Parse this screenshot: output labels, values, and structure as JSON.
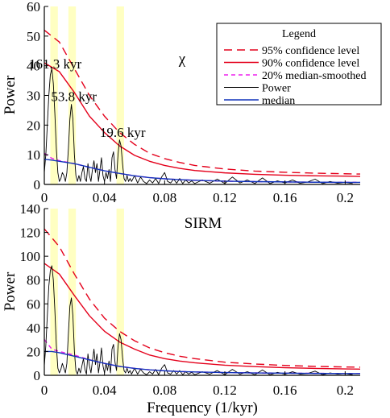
{
  "chart_data": [
    {
      "type": "line",
      "panel_label": "χ",
      "ylabel": "Power",
      "xlabel": "",
      "xlim": [
        0,
        0.21
      ],
      "ylim": [
        0,
        60
      ],
      "xticks": [
        0,
        0.04,
        0.08,
        0.12,
        0.16,
        0.2
      ],
      "xtick_labels": [
        "0",
        "0.04",
        "0.08",
        "0.12",
        "0.16",
        "0.2"
      ],
      "yticks": [
        0,
        10,
        20,
        30,
        40,
        50,
        60
      ],
      "ytick_labels": [
        "0",
        "10",
        "20",
        "30",
        "40",
        "50",
        "60"
      ],
      "bands": [
        [
          0.004,
          0.009
        ],
        [
          0.016,
          0.021
        ],
        [
          0.048,
          0.053
        ]
      ],
      "peak_labels": [
        {
          "text": "161.3 kyr",
          "x": 0.0062,
          "y": 38
        },
        {
          "text": "53.8 kyr",
          "x": 0.0186,
          "y": 27
        },
        {
          "text": "19.6 kyr",
          "x": 0.051,
          "y": 15
        }
      ],
      "legend": {
        "title": "Legend",
        "entries": [
          "95% confidence level",
          "90% confidence level",
          "20% median-smoothed",
          "Power",
          "median"
        ],
        "colors": [
          "#e4001b",
          "#e4001b",
          "#ee22ee",
          "#000000",
          "#1133bb"
        ],
        "dash": [
          "10,6",
          "",
          "5,4",
          "",
          ""
        ],
        "widths": [
          1.4,
          1.4,
          1.5,
          0.9,
          1.4
        ]
      },
      "series": [
        {
          "id": "conf95",
          "color": "#e4001b",
          "dash": "10,6",
          "width": 1.4,
          "x": [
            0,
            0.01,
            0.02,
            0.03,
            0.04,
            0.05,
            0.06,
            0.07,
            0.08,
            0.09,
            0.1,
            0.12,
            0.14,
            0.16,
            0.18,
            0.2,
            0.21
          ],
          "y": [
            52,
            48,
            39,
            30,
            23,
            17.5,
            13.5,
            10.5,
            8.7,
            7.4,
            6.4,
            5.2,
            4.5,
            4.1,
            3.8,
            3.6,
            3.5
          ]
        },
        {
          "id": "conf90",
          "color": "#e4001b",
          "dash": "",
          "width": 1.4,
          "x": [
            0,
            0.01,
            0.02,
            0.03,
            0.04,
            0.05,
            0.06,
            0.07,
            0.08,
            0.09,
            0.1,
            0.12,
            0.14,
            0.16,
            0.18,
            0.2,
            0.21
          ],
          "y": [
            41,
            38,
            31,
            23,
            17.5,
            13,
            9.8,
            7.8,
            6.4,
            5.4,
            4.7,
            3.9,
            3.4,
            3.1,
            2.9,
            2.8,
            2.7
          ]
        },
        {
          "id": "smoothed",
          "color": "#ee22ee",
          "dash": "5,4",
          "width": 1.5,
          "x": [
            0,
            0.005,
            0.01,
            0.02,
            0.03,
            0.04,
            0.05,
            0.06,
            0.07,
            0.08,
            0.09,
            0.1,
            0.12,
            0.14,
            0.16,
            0.18,
            0.2,
            0.21
          ],
          "y": [
            10.5,
            8.8,
            8,
            7,
            5.8,
            4.6,
            3.7,
            2.9,
            2.3,
            1.9,
            1.6,
            1.4,
            1.1,
            0.95,
            0.85,
            0.75,
            0.7,
            0.7
          ]
        },
        {
          "id": "power",
          "color": "#000000",
          "dash": "",
          "width": 0.9,
          "x": [
            0,
            0.001,
            0.002,
            0.003,
            0.004,
            0.005,
            0.006,
            0.007,
            0.008,
            0.009,
            0.01,
            0.011,
            0.012,
            0.013,
            0.014,
            0.015,
            0.016,
            0.017,
            0.018,
            0.019,
            0.02,
            0.021,
            0.022,
            0.023,
            0.024,
            0.025,
            0.026,
            0.027,
            0.028,
            0.029,
            0.03,
            0.031,
            0.032,
            0.033,
            0.034,
            0.035,
            0.036,
            0.037,
            0.038,
            0.039,
            0.04,
            0.041,
            0.042,
            0.043,
            0.044,
            0.045,
            0.046,
            0.047,
            0.048,
            0.049,
            0.05,
            0.051,
            0.052,
            0.053,
            0.054,
            0.055,
            0.056,
            0.057,
            0.058,
            0.06,
            0.062,
            0.064,
            0.066,
            0.068,
            0.07,
            0.072,
            0.074,
            0.076,
            0.078,
            0.08,
            0.082,
            0.084,
            0.086,
            0.088,
            0.09,
            0.092,
            0.094,
            0.096,
            0.098,
            0.1,
            0.105,
            0.11,
            0.115,
            0.12,
            0.125,
            0.13,
            0.135,
            0.14,
            0.145,
            0.15,
            0.155,
            0.16,
            0.165,
            0.17,
            0.175,
            0.18,
            0.185,
            0.19,
            0.195,
            0.2,
            0.205
          ],
          "y": [
            4,
            10,
            20,
            30,
            37,
            39,
            34,
            24,
            12,
            4,
            1,
            2,
            4,
            3,
            1,
            4,
            12,
            22,
            27,
            22,
            10,
            3,
            1,
            3,
            1,
            4,
            6,
            2,
            1,
            7,
            3,
            1,
            5,
            8,
            4,
            7,
            1,
            5,
            9,
            3,
            1,
            4,
            2,
            5,
            1,
            9,
            11,
            5,
            2,
            10,
            15,
            13,
            7,
            2,
            1,
            3,
            1,
            2,
            1,
            3,
            0.5,
            2.5,
            1,
            0.3,
            1.5,
            0.5,
            2,
            0.3,
            2.5,
            4,
            1,
            0.5,
            1.8,
            0.4,
            2,
            0.3,
            1.5,
            0.5,
            1.2,
            0.3,
            1.5,
            0.4,
            1.8,
            0.3,
            2.5,
            0.5,
            1.5,
            0.3,
            2.2,
            0.3,
            1.2,
            0.5,
            1.5,
            0.4,
            0.8,
            1.8,
            0.3,
            1,
            0.4,
            0.7,
            0.3
          ]
        },
        {
          "id": "median",
          "color": "#1133bb",
          "dash": "",
          "width": 1.4,
          "x": [
            0,
            0.005,
            0.01,
            0.02,
            0.03,
            0.04,
            0.05,
            0.06,
            0.07,
            0.08,
            0.09,
            0.1,
            0.12,
            0.14,
            0.16,
            0.18,
            0.2,
            0.21
          ],
          "y": [
            8.5,
            8.2,
            7.8,
            7,
            5.8,
            4.6,
            3.7,
            2.9,
            2.3,
            1.9,
            1.6,
            1.4,
            1.1,
            0.95,
            0.85,
            0.75,
            0.7,
            0.7
          ]
        }
      ]
    },
    {
      "type": "line",
      "panel_label": "SIRM",
      "ylabel": "Power",
      "xlabel": "Frequency (1/kyr)",
      "xlim": [
        0,
        0.21
      ],
      "ylim": [
        0,
        140
      ],
      "xticks": [
        0,
        0.04,
        0.08,
        0.12,
        0.16,
        0.2
      ],
      "xtick_labels": [
        "0",
        "0.04",
        "0.08",
        "0.12",
        "0.16",
        "0.2"
      ],
      "yticks": [
        0,
        20,
        40,
        60,
        80,
        100,
        120,
        140
      ],
      "ytick_labels": [
        "0",
        "20",
        "40",
        "60",
        "80",
        "100",
        "120",
        "140"
      ],
      "bands": [
        [
          0.004,
          0.009
        ],
        [
          0.016,
          0.021
        ],
        [
          0.048,
          0.053
        ]
      ],
      "series": [
        {
          "id": "conf95",
          "color": "#e4001b",
          "dash": "10,6",
          "width": 1.4,
          "x": [
            0,
            0.01,
            0.02,
            0.03,
            0.04,
            0.05,
            0.06,
            0.07,
            0.08,
            0.09,
            0.1,
            0.12,
            0.14,
            0.16,
            0.18,
            0.2,
            0.21
          ],
          "y": [
            123,
            108,
            85,
            64,
            48,
            37,
            29,
            23,
            19,
            16,
            14,
            11,
            9.5,
            8.3,
            7.5,
            7,
            6.8
          ]
        },
        {
          "id": "conf90",
          "color": "#e4001b",
          "dash": "",
          "width": 1.4,
          "x": [
            0,
            0.01,
            0.02,
            0.03,
            0.04,
            0.05,
            0.06,
            0.07,
            0.08,
            0.09,
            0.1,
            0.12,
            0.14,
            0.16,
            0.18,
            0.2,
            0.21
          ],
          "y": [
            94,
            85,
            67,
            50,
            37,
            28,
            22,
            17,
            14,
            12,
            10.5,
            8.5,
            7.3,
            6.4,
            5.8,
            5.4,
            5.2
          ]
        },
        {
          "id": "smoothed",
          "color": "#ee22ee",
          "dash": "5,4",
          "width": 1.5,
          "x": [
            0,
            0.005,
            0.01,
            0.02,
            0.03,
            0.04,
            0.05,
            0.06,
            0.07,
            0.08,
            0.09,
            0.1,
            0.12,
            0.14,
            0.16,
            0.18,
            0.2,
            0.21
          ],
          "y": [
            30,
            22,
            20,
            17,
            13,
            10,
            7.5,
            5.8,
            4.6,
            3.8,
            3.2,
            2.8,
            2.3,
            2,
            1.8,
            1.6,
            1.5,
            1.5
          ]
        },
        {
          "id": "power",
          "color": "#000000",
          "dash": "",
          "width": 0.9,
          "x": [
            0,
            0.001,
            0.002,
            0.003,
            0.004,
            0.005,
            0.006,
            0.007,
            0.008,
            0.009,
            0.01,
            0.011,
            0.012,
            0.013,
            0.014,
            0.015,
            0.016,
            0.017,
            0.018,
            0.019,
            0.02,
            0.021,
            0.022,
            0.023,
            0.024,
            0.025,
            0.026,
            0.027,
            0.028,
            0.029,
            0.03,
            0.031,
            0.032,
            0.033,
            0.034,
            0.035,
            0.036,
            0.037,
            0.038,
            0.039,
            0.04,
            0.041,
            0.042,
            0.043,
            0.044,
            0.045,
            0.046,
            0.047,
            0.048,
            0.049,
            0.05,
            0.051,
            0.052,
            0.053,
            0.054,
            0.055,
            0.056,
            0.057,
            0.058,
            0.06,
            0.062,
            0.064,
            0.066,
            0.068,
            0.07,
            0.072,
            0.074,
            0.076,
            0.078,
            0.08,
            0.082,
            0.084,
            0.086,
            0.088,
            0.09,
            0.092,
            0.094,
            0.096,
            0.098,
            0.1,
            0.105,
            0.11,
            0.115,
            0.12,
            0.125,
            0.13,
            0.135,
            0.14,
            0.145,
            0.15,
            0.155,
            0.16,
            0.165,
            0.17,
            0.175,
            0.18,
            0.185,
            0.19,
            0.195,
            0.2,
            0.205
          ],
          "y": [
            8,
            25,
            50,
            75,
            88,
            92,
            80,
            55,
            25,
            6,
            2,
            5,
            10,
            6,
            2,
            10,
            35,
            58,
            65,
            50,
            20,
            4,
            1,
            6,
            2,
            8,
            14,
            5,
            1,
            18,
            8,
            2,
            12,
            22,
            9,
            18,
            2,
            11,
            23,
            8,
            2,
            10,
            4,
            12,
            2,
            22,
            26,
            11,
            4,
            24,
            35,
            30,
            15,
            4,
            2,
            6,
            2,
            4,
            1,
            6,
            1,
            5,
            2,
            0.5,
            3,
            1,
            5,
            0.5,
            6,
            9,
            2,
            1,
            4,
            1,
            4,
            0.5,
            3,
            1,
            2.5,
            0.5,
            3,
            1,
            4,
            0.5,
            5,
            1,
            3,
            0.5,
            4.5,
            0.5,
            2.5,
            1,
            3,
            1,
            1.5,
            3.5,
            0.5,
            2,
            1,
            1.5,
            0.5
          ]
        },
        {
          "id": "median",
          "color": "#1133bb",
          "dash": "",
          "width": 1.4,
          "x": [
            0,
            0.005,
            0.01,
            0.02,
            0.03,
            0.04,
            0.05,
            0.06,
            0.07,
            0.08,
            0.09,
            0.1,
            0.12,
            0.14,
            0.16,
            0.18,
            0.2,
            0.21
          ],
          "y": [
            20,
            20,
            19,
            16,
            13,
            10,
            7.5,
            5.8,
            4.6,
            3.8,
            3.2,
            2.8,
            2.3,
            2,
            1.8,
            1.6,
            1.5,
            1.5
          ]
        }
      ]
    }
  ]
}
